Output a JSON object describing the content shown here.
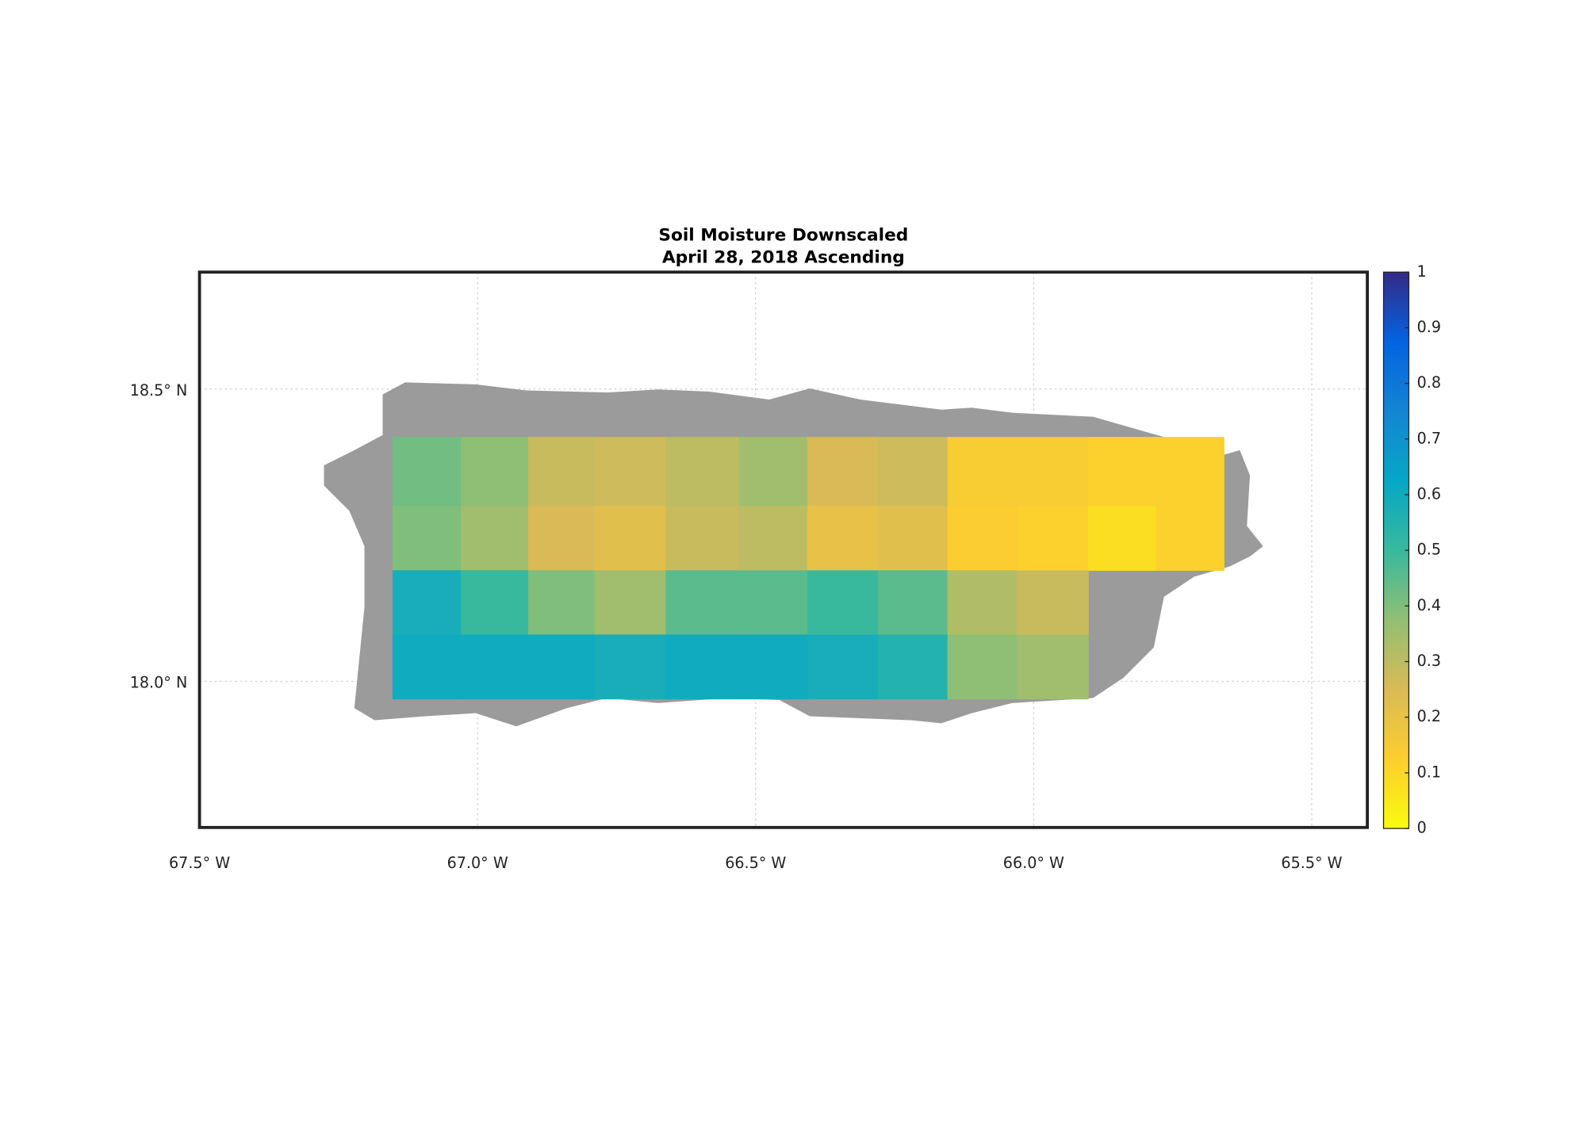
{
  "chart_data": {
    "type": "map",
    "title": "Soil Moisture Downscaled",
    "subtitle": "April 28, 2018 Ascending",
    "xlim": [
      -67.5,
      -65.4
    ],
    "ylim": [
      17.75,
      18.7
    ],
    "xticks": [
      {
        "value": -67.5,
        "label": "67.5° W"
      },
      {
        "value": -67.0,
        "label": "67.0° W"
      },
      {
        "value": -66.5,
        "label": "66.5° W"
      },
      {
        "value": -66.0,
        "label": "66.0° W"
      },
      {
        "value": -65.5,
        "label": "65.5° W"
      }
    ],
    "yticks": [
      {
        "value": 18.0,
        "label": "18.0° N"
      },
      {
        "value": 18.5,
        "label": "18.5° N"
      }
    ],
    "grid": true,
    "lon_edges": [
      -67.153,
      -67.03,
      -66.909,
      -66.79,
      -66.662,
      -66.53,
      -66.407,
      -66.28,
      -66.155,
      -66.03,
      -65.902,
      -65.78,
      -65.658
    ],
    "lat_edges": [
      18.418,
      18.3,
      18.19,
      18.08,
      17.97
    ],
    "values": [
      [
        0.42,
        0.38,
        0.28,
        0.27,
        0.3,
        0.35,
        0.25,
        0.27,
        0.14,
        0.14,
        0.12,
        0.12
      ],
      [
        0.4,
        0.35,
        0.25,
        0.22,
        0.28,
        0.3,
        0.2,
        0.22,
        0.13,
        0.12,
        0.08,
        0.12
      ],
      [
        0.58,
        0.5,
        0.4,
        0.35,
        0.45,
        0.45,
        0.5,
        0.45,
        0.32,
        0.28,
        null,
        null
      ],
      [
        0.6,
        0.6,
        0.6,
        0.58,
        0.6,
        0.6,
        0.58,
        0.55,
        0.38,
        0.35,
        null,
        null
      ]
    ],
    "colormap": "parula",
    "colormap_reversed": true,
    "land_color": "#9b9b9b",
    "clim": [
      0,
      1
    ],
    "cticks": [
      0,
      0.1,
      0.2,
      0.3,
      0.4,
      0.5,
      0.6,
      0.7,
      0.8,
      0.9,
      1
    ]
  }
}
